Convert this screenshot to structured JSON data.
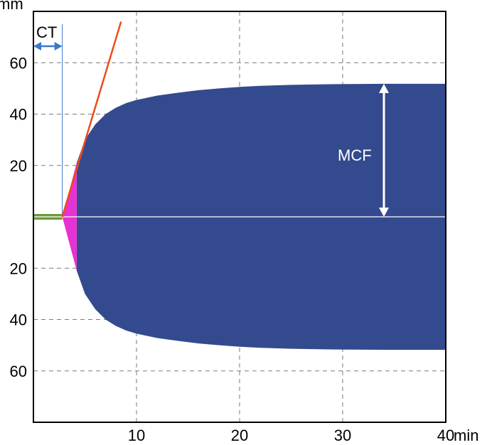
{
  "chart_data": {
    "type": "area",
    "x_unit": "min",
    "y_unit": "mm",
    "xlim": [
      0,
      40
    ],
    "ylim": [
      -80,
      80
    ],
    "grid": true,
    "x_ticks": [
      {
        "value": 10,
        "label": "10"
      },
      {
        "value": 20,
        "label": "20"
      },
      {
        "value": 30,
        "label": "30"
      },
      {
        "value": 40,
        "label": "40"
      }
    ],
    "y_ticks": [
      {
        "value": 60,
        "label": "60"
      },
      {
        "value": 40,
        "label": "40"
      },
      {
        "value": 20,
        "label": "20"
      },
      {
        "value": -20,
        "label": "20"
      },
      {
        "value": -40,
        "label": "40"
      },
      {
        "value": -60,
        "label": "60"
      }
    ],
    "clot_amplitude": {
      "x": [
        4.2,
        5,
        6,
        7,
        8,
        9,
        10,
        12,
        14,
        16,
        18,
        20,
        22,
        25,
        28,
        30,
        34,
        40
      ],
      "y": [
        21,
        30,
        36,
        40,
        42.5,
        44.3,
        45.5,
        47.2,
        48.3,
        49.3,
        50,
        50.6,
        51,
        51.4,
        51.6,
        51.7,
        51.8,
        51.8
      ]
    },
    "clotting_initiation": {
      "x_start": 2.8,
      "x_end": 4.2,
      "amplitude_end": 21
    },
    "baseline": {
      "x_start": 0,
      "x_end": 2.8,
      "color": "#6d9a3c"
    },
    "tangent_line": {
      "x": [
        2.8,
        8.5
      ],
      "y": [
        0,
        76
      ],
      "color": "#ee4a1c"
    },
    "ct_marker": {
      "x": 2.8
    },
    "mcf_value": 51.8,
    "mcf_x": 34,
    "colors": {
      "fill": "#344a8e",
      "initiation": "#e632d2",
      "ct_arrow": "#3d78c8",
      "mcf_arrow": "#ffffff",
      "grid": "#7a7a7a"
    },
    "annotations": {
      "ct": "CT",
      "mcf": "MCF",
      "y_unit_label": "mm",
      "x_unit_label": "min"
    }
  }
}
